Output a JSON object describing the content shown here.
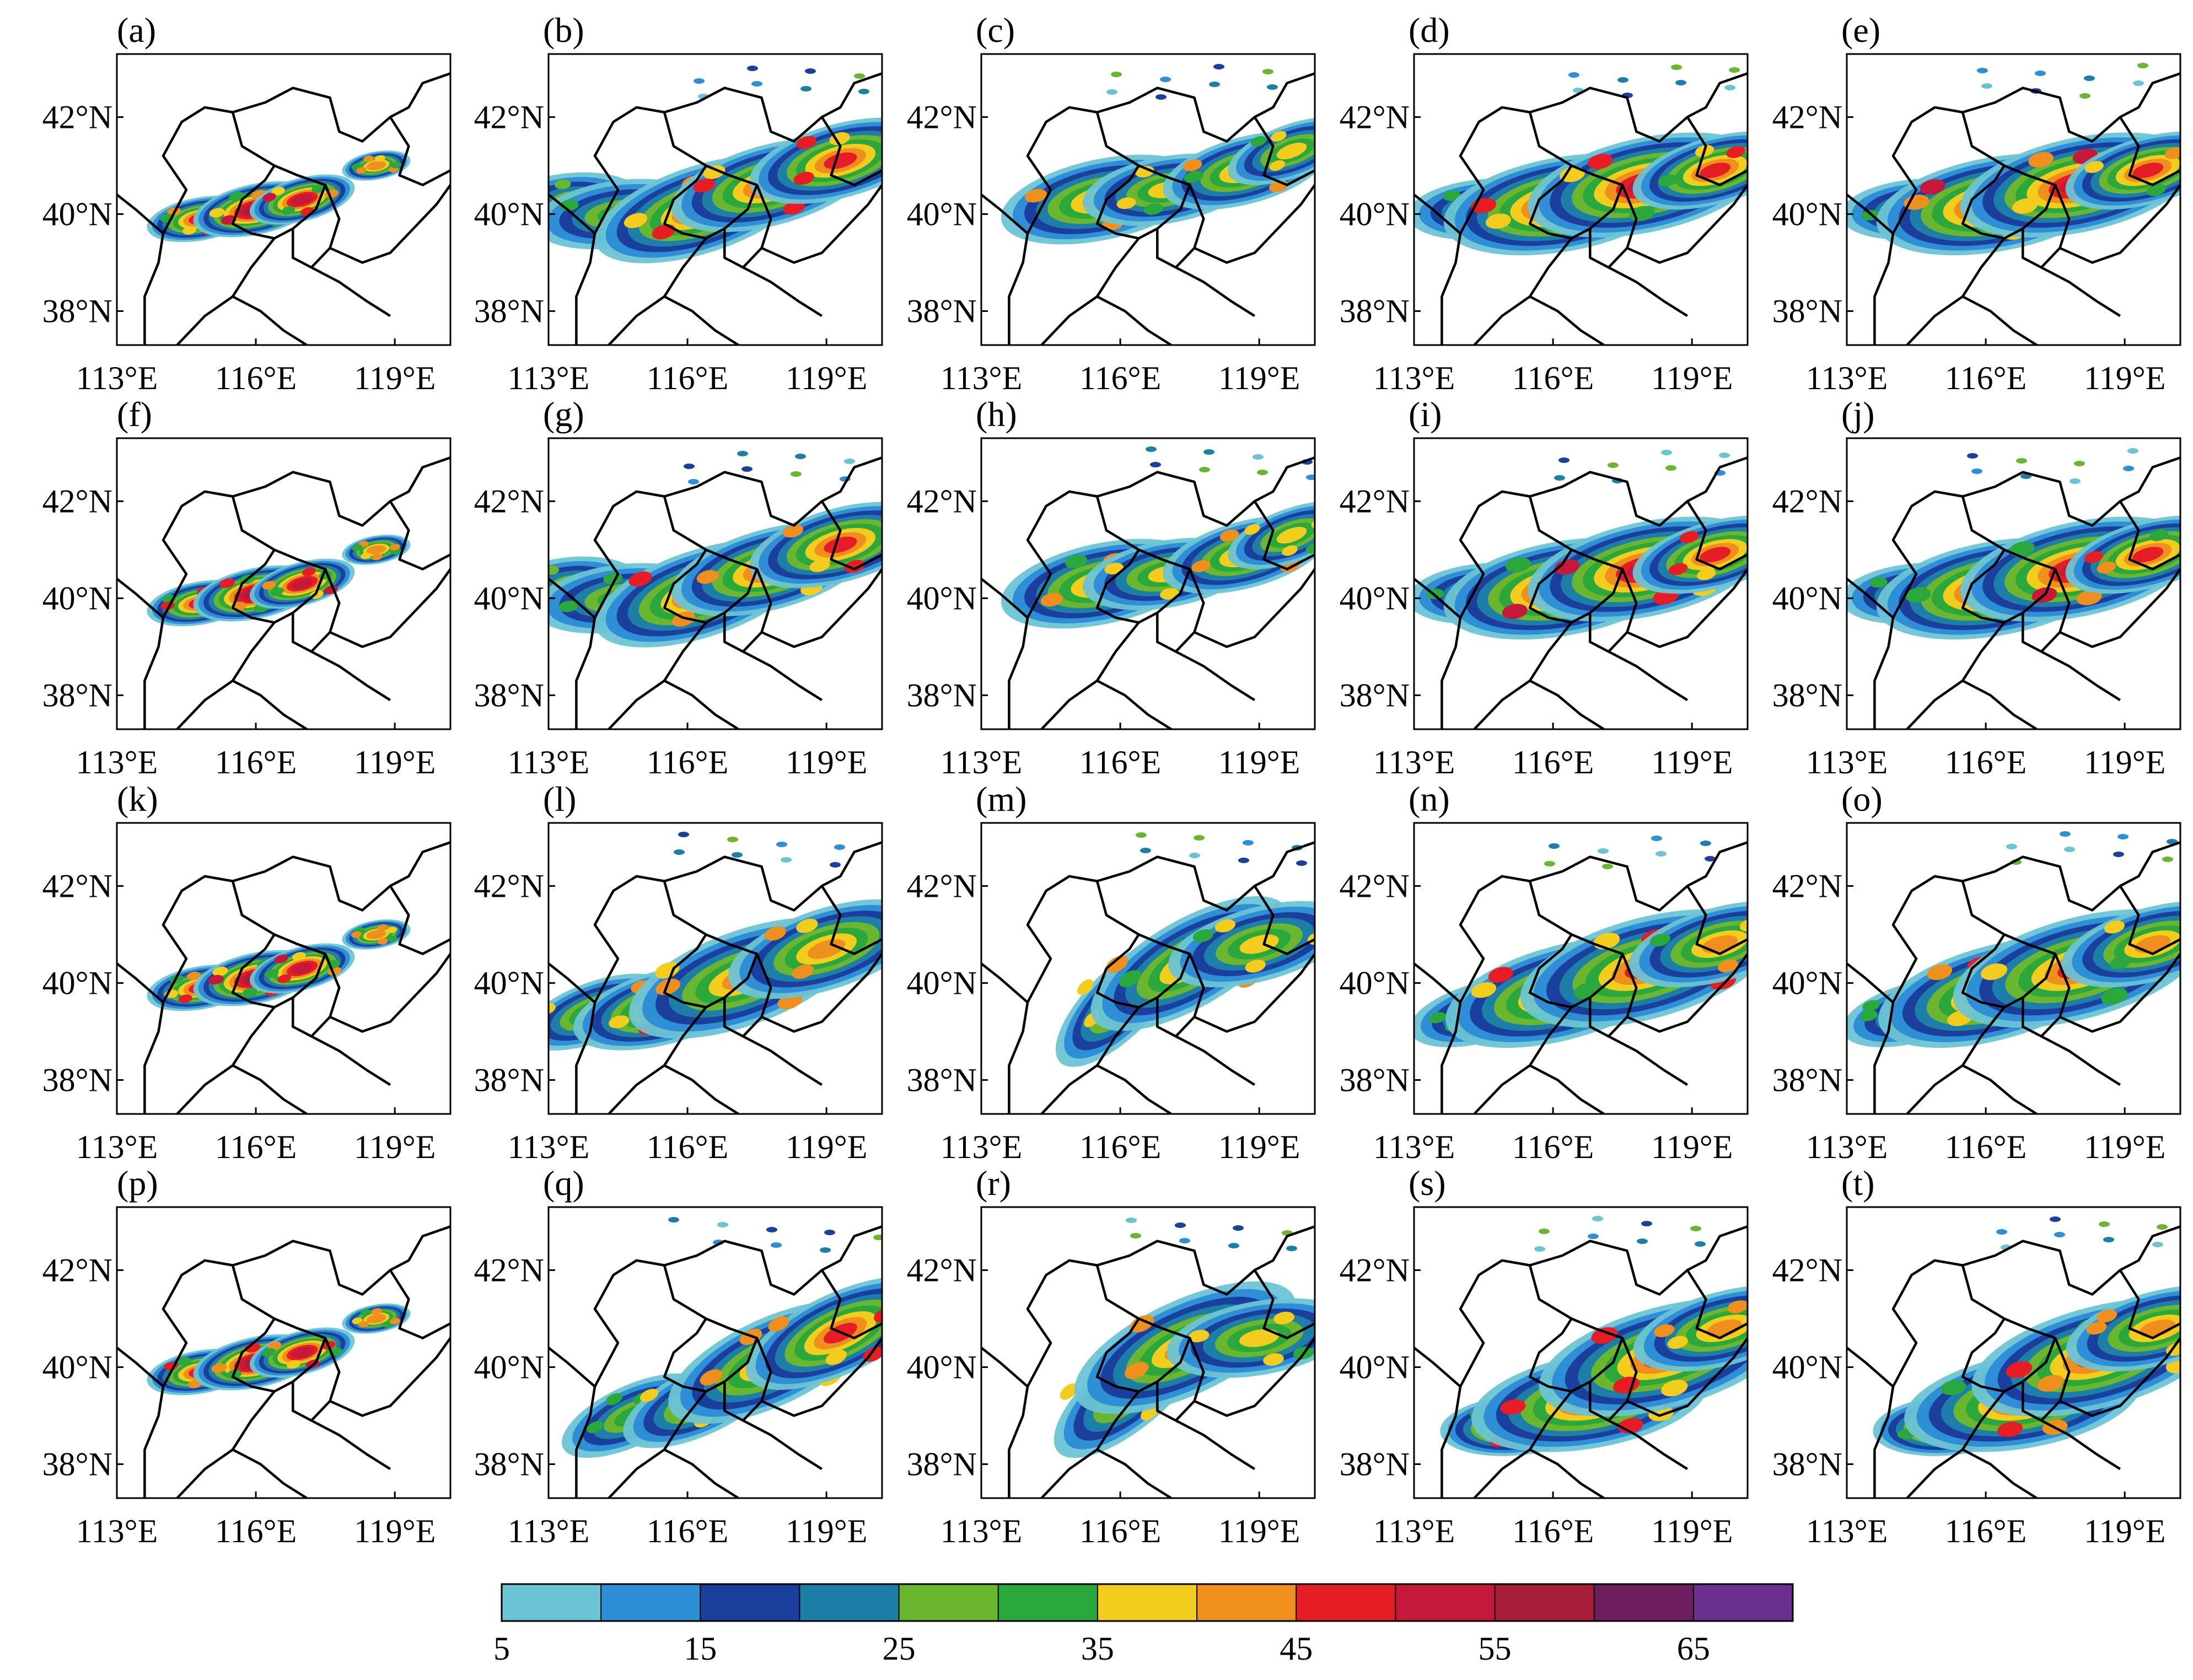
{
  "figure": {
    "panel_labels": [
      "(a)",
      "(b)",
      "(c)",
      "(d)",
      "(e)",
      "(f)",
      "(g)",
      "(h)",
      "(i)",
      "(j)",
      "(k)",
      "(l)",
      "(m)",
      "(n)",
      "(o)",
      "(p)",
      "(q)",
      "(r)",
      "(s)",
      "(t)"
    ],
    "x_ticks": [
      "113°E",
      "116°E",
      "119°E"
    ],
    "y_ticks": [
      "42°N",
      "40°N",
      "38°N"
    ],
    "map_extent": {
      "lon": [
        113,
        120.2
      ],
      "lat": [
        37.3,
        43.3
      ]
    }
  },
  "colorbar": {
    "tick_labels": [
      "5",
      "15",
      "25",
      "35",
      "45",
      "55",
      "65"
    ],
    "levels": [
      5,
      10,
      15,
      20,
      25,
      30,
      35,
      40,
      45,
      50,
      55,
      60,
      65,
      70
    ],
    "colors": [
      "#6bc4d4",
      "#2f8fd6",
      "#1b3f9c",
      "#1d7fa8",
      "#6ab72f",
      "#2aa83b",
      "#f3cd1d",
      "#ef8f1d",
      "#e61d24",
      "#c6183a",
      "#a81d38",
      "#6e1d5e",
      "#6b2f8f"
    ]
  },
  "map_style": {
    "border_color": "#000000",
    "background": "#ffffff"
  }
}
